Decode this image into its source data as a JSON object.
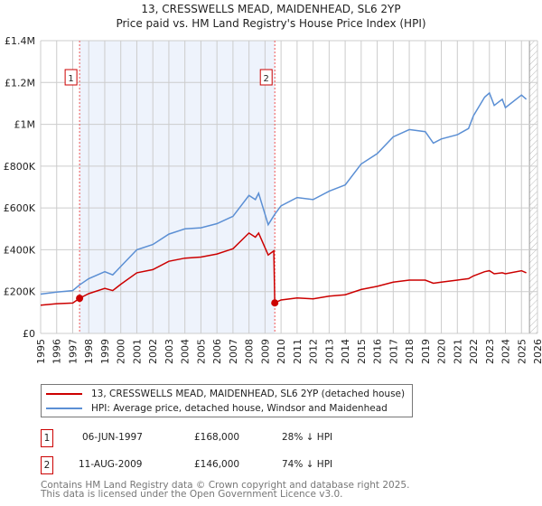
{
  "title_line1": "13, CRESSWELLS MEAD, MAIDENHEAD, SL6 2YP",
  "title_line2": "Price paid vs. HM Land Registry's House Price Index (HPI)",
  "colors": {
    "property": "#cc0000",
    "hpi": "#5b8fd4",
    "shade": "#eef3fc"
  },
  "chart_data": {
    "type": "line",
    "title": "13, CRESSWELLS MEAD, MAIDENHEAD, SL6 2YP — Price paid vs. HM Land Registry's House Price Index (HPI)",
    "xlim": [
      1995,
      2026
    ],
    "ylim": [
      0,
      1400000
    ],
    "x_ticks": [
      "1995",
      "1996",
      "1997",
      "1998",
      "1999",
      "2000",
      "2001",
      "2002",
      "2003",
      "2004",
      "2005",
      "2006",
      "2007",
      "2008",
      "2009",
      "2010",
      "2011",
      "2012",
      "2013",
      "2014",
      "2015",
      "2016",
      "2017",
      "2018",
      "2019",
      "2020",
      "2021",
      "2022",
      "2023",
      "2024",
      "2025",
      "2026"
    ],
    "y_ticks": [
      {
        "v": 0,
        "label": "£0"
      },
      {
        "v": 200000,
        "label": "£200K"
      },
      {
        "v": 400000,
        "label": "£400K"
      },
      {
        "v": 600000,
        "label": "£600K"
      },
      {
        "v": 800000,
        "label": "£800K"
      },
      {
        "v": 1000000,
        "label": "£1M"
      },
      {
        "v": 1200000,
        "label": "£1.2M"
      },
      {
        "v": 1400000,
        "label": "£1.4M"
      }
    ],
    "grid": true,
    "shaded_range": [
      1997.43,
      2009.61
    ],
    "forecast_hatch_from": 2025.5,
    "series": [
      {
        "name": "13, CRESSWELLS MEAD, MAIDENHEAD, SL6 2YP (detached house)",
        "color": "#cc0000",
        "x": [
          1995,
          1996,
          1997,
          1997.43,
          1998,
          1999,
          1999.5,
          2000,
          2001,
          2002,
          2003,
          2004,
          2005,
          2006,
          2007,
          2008,
          2008.4,
          2008.6,
          2009.2,
          2009.55,
          2009.61,
          2010,
          2011,
          2012,
          2013,
          2014,
          2015,
          2016,
          2017,
          2018,
          2019,
          2019.5,
          2020,
          2021,
          2021.7,
          2022,
          2022.7,
          2023,
          2023.3,
          2023.8,
          2024,
          2025,
          2025.3
        ],
        "y": [
          135000,
          142000,
          145000,
          168000,
          190000,
          215000,
          205000,
          235000,
          290000,
          305000,
          345000,
          360000,
          365000,
          380000,
          405000,
          480000,
          460000,
          480000,
          375000,
          395000,
          146000,
          160000,
          170000,
          165000,
          178000,
          185000,
          210000,
          225000,
          245000,
          255000,
          255000,
          240000,
          245000,
          255000,
          262000,
          275000,
          295000,
          300000,
          285000,
          290000,
          285000,
          300000,
          290000
        ]
      },
      {
        "name": "HPI: Average price, detached house, Windsor and Maidenhead",
        "color": "#5b8fd4",
        "x": [
          1995,
          1996,
          1997,
          1997.43,
          1998,
          1999,
          1999.5,
          2000,
          2001,
          2002,
          2003,
          2004,
          2005,
          2006,
          2007,
          2008,
          2008.4,
          2008.6,
          2009.2,
          2009.61,
          2010,
          2011,
          2012,
          2013,
          2014,
          2015,
          2016,
          2017,
          2018,
          2019,
          2019.5,
          2020,
          2021,
          2021.7,
          2022,
          2022.7,
          2023,
          2023.3,
          2023.8,
          2024,
          2025,
          2025.3
        ],
        "y": [
          188000,
          198000,
          205000,
          232000,
          262000,
          295000,
          280000,
          320000,
          400000,
          425000,
          475000,
          500000,
          505000,
          525000,
          560000,
          660000,
          640000,
          670000,
          520000,
          570000,
          610000,
          650000,
          640000,
          680000,
          710000,
          810000,
          860000,
          940000,
          975000,
          965000,
          910000,
          930000,
          950000,
          980000,
          1040000,
          1130000,
          1150000,
          1090000,
          1120000,
          1080000,
          1140000,
          1120000
        ]
      }
    ],
    "sales": [
      {
        "id": "1",
        "x": 1997.43,
        "y": 168000
      },
      {
        "id": "2",
        "x": 2009.61,
        "y": 146000
      }
    ]
  },
  "legend": {
    "property": "13, CRESSWELLS MEAD, MAIDENHEAD, SL6 2YP (detached house)",
    "hpi": "HPI: Average price, detached house, Windsor and Maidenhead"
  },
  "transactions": [
    {
      "id": "1",
      "date": "06-JUN-1997",
      "price": "£168,000",
      "delta": "28% ↓ HPI"
    },
    {
      "id": "2",
      "date": "11-AUG-2009",
      "price": "£146,000",
      "delta": "74% ↓ HPI"
    }
  ],
  "footer": {
    "line1": "Contains HM Land Registry data © Crown copyright and database right 2025.",
    "line2": "This data is licensed under the Open Government Licence v3.0."
  }
}
